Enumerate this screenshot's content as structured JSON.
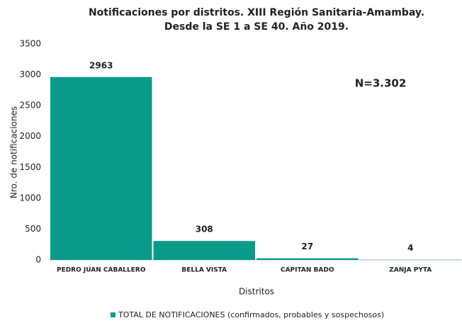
{
  "chart_data": {
    "type": "bar",
    "title": [
      "Notificaciones por distritos. XIII Región Sanitaria-Amambay.",
      "Desde la SE 1 a SE 40. Año 2019."
    ],
    "x_label": "Distritos",
    "y_label": "Nro. de notificaciones",
    "annotation": "N=3.302",
    "categories": [
      "PEDRO JUAN CABALLERO",
      "BELLA VISTA",
      "CAPITAN BADO",
      "ZANJA PYTA"
    ],
    "series": [
      {
        "name": "TOTAL DE NOTIFICACIONES (confirmados, probables y sospechosos)",
        "color": "#0a9a8a",
        "values": [
          2963,
          308,
          27,
          4
        ]
      }
    ],
    "ylim": [
      0,
      3500
    ],
    "yticks": [
      0,
      500,
      1000,
      1500,
      2000,
      2500,
      3000,
      3500
    ],
    "grid": false
  }
}
